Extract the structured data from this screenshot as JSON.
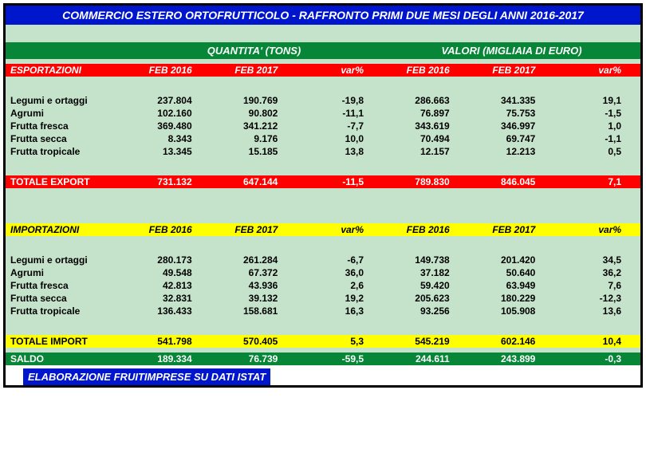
{
  "title": "COMMERCIO ESTERO ORTOFRUTTICOLO - RAFFRONTO PRIMI DUE MESI DEGLI ANNI 2016-2017",
  "group_headers": {
    "qty": "QUANTITA' (TONS)",
    "val": "VALORI (MIGLIAIA DI EURO)"
  },
  "columns": {
    "export_label": "ESPORTAZIONI",
    "import_label": "IMPORTAZIONI",
    "feb2016": "FEB 2016",
    "feb2017": "FEB 2017",
    "var": "var%"
  },
  "export_rows": [
    {
      "label": "Legumi e ortaggi",
      "q16": "237.804",
      "q17": "190.769",
      "qvar": "-19,8",
      "v16": "286.663",
      "v17": "341.335",
      "vvar": "19,1"
    },
    {
      "label": "Agrumi",
      "q16": "102.160",
      "q17": "90.802",
      "qvar": "-11,1",
      "v16": "76.897",
      "v17": "75.753",
      "vvar": "-1,5"
    },
    {
      "label": "Frutta fresca",
      "q16": "369.480",
      "q17": "341.212",
      "qvar": "-7,7",
      "v16": "343.619",
      "v17": "346.997",
      "vvar": "1,0"
    },
    {
      "label": "Frutta secca",
      "q16": "8.343",
      "q17": "9.176",
      "qvar": "10,0",
      "v16": "70.494",
      "v17": "69.747",
      "vvar": "-1,1"
    },
    {
      "label": "Frutta tropicale",
      "q16": "13.345",
      "q17": "15.185",
      "qvar": "13,8",
      "v16": "12.157",
      "v17": "12.213",
      "vvar": "0,5"
    }
  ],
  "export_total": {
    "label": "TOTALE EXPORT",
    "q16": "731.132",
    "q17": "647.144",
    "qvar": "-11,5",
    "v16": "789.830",
    "v17": "846.045",
    "vvar": "7,1"
  },
  "import_rows": [
    {
      "label": "Legumi e ortaggi",
      "q16": "280.173",
      "q17": "261.284",
      "qvar": "-6,7",
      "v16": "149.738",
      "v17": "201.420",
      "vvar": "34,5"
    },
    {
      "label": "Agrumi",
      "q16": "49.548",
      "q17": "67.372",
      "qvar": "36,0",
      "v16": "37.182",
      "v17": "50.640",
      "vvar": "36,2"
    },
    {
      "label": "Frutta fresca",
      "q16": "42.813",
      "q17": "43.936",
      "qvar": "2,6",
      "v16": "59.420",
      "v17": "63.949",
      "vvar": "7,6"
    },
    {
      "label": "Frutta secca",
      "q16": "32.831",
      "q17": "39.132",
      "qvar": "19,2",
      "v16": "205.623",
      "v17": "180.229",
      "vvar": "-12,3"
    },
    {
      "label": "Frutta tropicale",
      "q16": "136.433",
      "q17": "158.681",
      "qvar": "16,3",
      "v16": "93.256",
      "v17": "105.908",
      "vvar": "13,6"
    }
  ],
  "import_total": {
    "label": "TOTALE IMPORT",
    "q16": "541.798",
    "q17": "570.405",
    "qvar": "5,3",
    "v16": "545.219",
    "v17": "602.146",
    "vvar": "10,4"
  },
  "saldo": {
    "label": "SALDO",
    "q16": "189.334",
    "q17": "76.739",
    "qvar": "-59,5",
    "v16": "244.611",
    "v17": "243.899",
    "vvar": "-0,3"
  },
  "footer": "ELABORAZIONE FRUITIMPRESE SU DATI ISTAT",
  "colors": {
    "blue": "#0016cc",
    "green_header": "#068636",
    "green_bg": "#c5e3cb",
    "red": "#ff0000",
    "yellow": "#ffff00",
    "white": "#ffffff",
    "black": "#000000"
  }
}
